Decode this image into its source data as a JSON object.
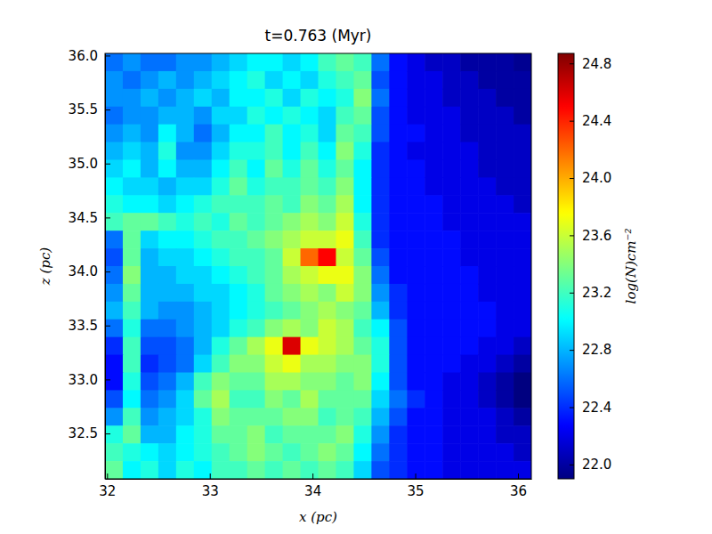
{
  "chart_data": {
    "type": "heatmap",
    "title": "t=0.763 (Myr)",
    "x_label": "x (pc)",
    "y_label": "z (pc)",
    "xlim": [
      31.98,
      36.13
    ],
    "ylim": [
      32.08,
      36.02
    ],
    "xticks": [
      32,
      33,
      34,
      35,
      36
    ],
    "yticks": [
      32.5,
      {
        "value": 33,
        "label": "33.0"
      },
      33.5,
      {
        "value": 34,
        "label": "34.0"
      },
      34.5,
      {
        "value": 35,
        "label": "35.0"
      },
      35.5,
      {
        "value": 36,
        "label": "36.0"
      }
    ],
    "cells": [
      [
        22.6,
        22.7,
        22.6,
        22.6,
        22.7,
        22.7,
        22.8,
        22.9,
        23.0,
        23.0,
        22.9,
        23.0,
        23.2,
        23.3,
        23.2,
        22.6,
        22.3,
        22.2,
        22.1,
        22.1,
        22.0,
        22.0,
        22.0,
        21.95
      ],
      [
        22.7,
        22.6,
        22.7,
        22.8,
        22.7,
        22.8,
        22.9,
        23.0,
        23.1,
        22.9,
        23.0,
        22.9,
        23.1,
        23.2,
        23.3,
        22.5,
        22.3,
        22.2,
        22.2,
        22.1,
        22.1,
        22.0,
        22.0,
        22.0
      ],
      [
        22.7,
        22.7,
        22.8,
        22.7,
        22.8,
        22.9,
        22.8,
        23.0,
        23.0,
        23.1,
        22.9,
        23.1,
        23.0,
        23.1,
        23.4,
        22.6,
        22.3,
        22.2,
        22.2,
        22.1,
        22.1,
        22.1,
        22.0,
        22.0
      ],
      [
        22.6,
        22.7,
        22.7,
        22.8,
        22.8,
        22.7,
        22.9,
        22.9,
        23.1,
        23.0,
        23.1,
        23.0,
        22.9,
        23.2,
        23.3,
        22.5,
        22.3,
        22.2,
        22.2,
        22.2,
        22.1,
        22.1,
        22.1,
        22.0
      ],
      [
        22.7,
        22.8,
        22.7,
        23.0,
        22.8,
        22.6,
        22.8,
        23.0,
        23.0,
        23.2,
        23.0,
        23.1,
        22.9,
        23.3,
        23.2,
        22.5,
        22.3,
        22.3,
        22.2,
        22.2,
        22.1,
        22.1,
        22.1,
        22.1
      ],
      [
        22.8,
        22.9,
        22.8,
        23.1,
        22.7,
        22.7,
        22.9,
        23.1,
        23.1,
        23.2,
        23.0,
        23.2,
        23.0,
        23.4,
        23.1,
        22.4,
        22.3,
        22.2,
        22.2,
        22.2,
        22.2,
        22.1,
        22.1,
        22.1
      ],
      [
        22.9,
        23.0,
        22.8,
        23.0,
        22.8,
        22.8,
        23.0,
        23.2,
        23.0,
        23.3,
        23.1,
        23.3,
        23.1,
        23.3,
        23.0,
        22.4,
        22.3,
        22.3,
        22.2,
        22.2,
        22.2,
        22.1,
        22.1,
        22.1
      ],
      [
        23.0,
        22.9,
        22.9,
        22.8,
        22.9,
        22.9,
        23.1,
        23.3,
        23.1,
        23.2,
        23.2,
        23.3,
        23.2,
        23.4,
        23.0,
        22.4,
        22.3,
        22.3,
        22.2,
        22.2,
        22.2,
        22.2,
        22.1,
        22.1
      ],
      [
        23.1,
        23.0,
        23.0,
        22.9,
        23.0,
        23.1,
        23.2,
        23.2,
        23.2,
        23.3,
        23.2,
        23.4,
        23.3,
        23.5,
        23.0,
        22.4,
        22.3,
        22.3,
        22.3,
        22.2,
        22.2,
        22.2,
        22.2,
        22.1
      ],
      [
        23.2,
        23.3,
        23.3,
        23.2,
        23.1,
        23.2,
        23.1,
        23.3,
        23.2,
        23.3,
        23.4,
        23.5,
        23.4,
        23.6,
        23.1,
        22.4,
        22.3,
        22.3,
        22.3,
        22.2,
        22.2,
        22.2,
        22.2,
        22.2
      ],
      [
        22.6,
        23.3,
        22.9,
        23.0,
        23.0,
        23.1,
        23.2,
        23.2,
        23.3,
        23.4,
        23.5,
        23.6,
        23.6,
        23.7,
        23.2,
        22.4,
        22.3,
        22.3,
        22.3,
        22.3,
        22.2,
        22.2,
        22.2,
        22.2
      ],
      [
        22.5,
        23.3,
        22.8,
        22.9,
        22.9,
        23.0,
        23.1,
        23.2,
        23.2,
        23.3,
        23.6,
        24.2,
        24.5,
        23.6,
        23.3,
        22.5,
        22.3,
        22.3,
        22.3,
        22.3,
        22.2,
        22.2,
        22.2,
        22.2
      ],
      [
        22.6,
        23.4,
        22.8,
        22.8,
        22.9,
        22.9,
        23.0,
        23.1,
        23.2,
        23.3,
        23.5,
        23.6,
        23.7,
        23.7,
        23.4,
        22.6,
        22.3,
        22.3,
        22.3,
        22.3,
        22.3,
        22.2,
        22.2,
        22.2
      ],
      [
        22.7,
        23.3,
        22.8,
        22.8,
        22.8,
        22.9,
        22.9,
        23.0,
        23.1,
        23.3,
        23.4,
        23.5,
        23.4,
        23.6,
        23.4,
        22.7,
        22.4,
        22.3,
        22.3,
        22.3,
        22.3,
        22.2,
        22.2,
        22.2
      ],
      [
        22.8,
        23.2,
        22.8,
        22.7,
        22.7,
        22.8,
        22.9,
        23.0,
        23.1,
        23.2,
        23.3,
        23.4,
        23.5,
        23.4,
        23.3,
        22.8,
        22.4,
        22.3,
        22.3,
        22.3,
        22.3,
        22.3,
        22.2,
        22.2
      ],
      [
        22.6,
        23.1,
        22.6,
        22.6,
        22.7,
        22.8,
        22.9,
        23.1,
        23.2,
        23.4,
        23.5,
        23.4,
        23.6,
        23.5,
        23.2,
        23.0,
        22.5,
        22.3,
        22.3,
        22.3,
        22.3,
        22.3,
        22.2,
        22.2
      ],
      [
        22.4,
        23.2,
        22.5,
        22.5,
        22.6,
        22.8,
        23.1,
        23.3,
        23.5,
        23.7,
        24.6,
        23.7,
        23.6,
        23.5,
        23.3,
        23.1,
        22.5,
        22.3,
        22.3,
        22.3,
        22.3,
        22.2,
        22.2,
        22.1
      ],
      [
        22.3,
        23.2,
        22.4,
        22.5,
        22.6,
        22.9,
        23.2,
        23.4,
        23.4,
        23.6,
        23.7,
        23.5,
        23.5,
        23.4,
        23.4,
        23.1,
        22.5,
        22.3,
        22.3,
        22.3,
        22.2,
        22.2,
        22.1,
        22.0
      ],
      [
        22.3,
        23.1,
        22.5,
        22.6,
        22.8,
        23.2,
        23.4,
        23.3,
        23.3,
        23.5,
        23.5,
        23.4,
        23.4,
        23.3,
        23.4,
        23.0,
        22.5,
        22.3,
        22.3,
        22.2,
        22.2,
        22.1,
        22.0,
        21.9
      ],
      [
        22.5,
        23.0,
        22.6,
        22.7,
        22.9,
        23.3,
        23.5,
        23.2,
        23.2,
        23.4,
        23.3,
        23.5,
        23.3,
        23.3,
        23.3,
        22.9,
        22.6,
        22.4,
        22.3,
        22.2,
        22.2,
        22.1,
        22.0,
        21.9
      ],
      [
        22.7,
        23.2,
        22.7,
        22.8,
        22.9,
        23.1,
        23.4,
        23.3,
        23.3,
        23.3,
        23.4,
        23.4,
        23.2,
        23.3,
        23.2,
        22.8,
        22.5,
        22.3,
        22.3,
        22.2,
        22.2,
        22.2,
        22.1,
        22.0
      ],
      [
        23.1,
        23.3,
        22.8,
        22.8,
        23.0,
        23.1,
        23.3,
        23.3,
        23.4,
        23.2,
        23.3,
        23.3,
        23.3,
        23.4,
        23.1,
        22.7,
        22.4,
        22.3,
        22.3,
        22.2,
        22.2,
        22.2,
        22.1,
        22.1
      ],
      [
        23.2,
        23.1,
        23.0,
        22.9,
        23.0,
        23.1,
        23.2,
        23.3,
        23.4,
        23.3,
        23.2,
        23.3,
        23.4,
        23.3,
        23.0,
        22.6,
        22.4,
        22.3,
        22.3,
        22.2,
        22.2,
        22.2,
        22.2,
        22.1
      ],
      [
        23.3,
        23.0,
        23.1,
        22.9,
        23.1,
        23.0,
        23.2,
        23.2,
        23.3,
        23.2,
        23.3,
        23.2,
        23.3,
        23.2,
        22.9,
        22.5,
        22.4,
        22.3,
        22.3,
        22.2,
        22.2,
        22.2,
        22.2,
        22.2
      ]
    ],
    "color_range": [
      21.9,
      24.87
    ],
    "color_ticks": [
      {
        "value": 22,
        "label": "22.0"
      },
      22.4,
      22.8,
      23.2,
      23.6,
      {
        "value": 24,
        "label": "24.0"
      },
      24.4,
      24.8
    ],
    "color_label": "log(N)cm⁻²"
  }
}
